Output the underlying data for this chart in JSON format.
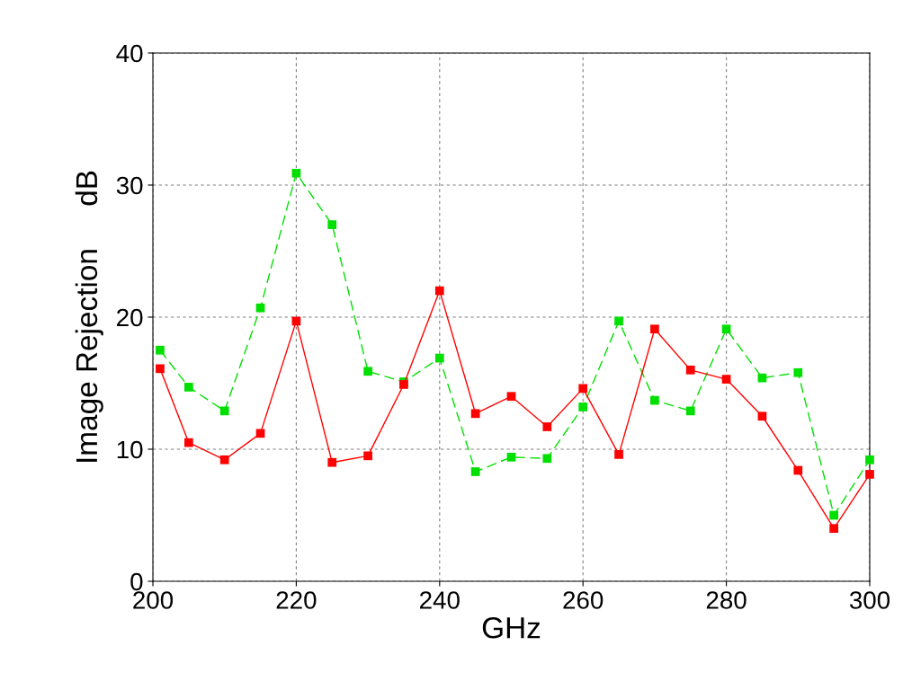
{
  "chart_data": {
    "type": "line",
    "xlabel": "GHz",
    "ylabel": "Image Rejection     dB",
    "x": [
      201,
      205,
      210,
      215,
      220,
      225,
      230,
      235,
      240,
      245,
      250,
      255,
      260,
      265,
      270,
      275,
      280,
      285,
      290,
      295,
      300
    ],
    "series": [
      {
        "color": "#ff0000",
        "line_style": "solid",
        "values": [
          16.1,
          10.5,
          9.2,
          11.2,
          19.7,
          9.0,
          9.5,
          14.9,
          22.0,
          12.7,
          14.0,
          11.7,
          14.6,
          9.6,
          19.1,
          16.0,
          15.3,
          12.5,
          8.4,
          4.0,
          8.1
        ]
      },
      {
        "color": "#00e000",
        "line_style": "dashed",
        "values": [
          17.5,
          14.7,
          12.9,
          20.7,
          30.9,
          27.0,
          15.9,
          15.1,
          16.9,
          8.3,
          9.4,
          9.3,
          13.2,
          19.7,
          13.7,
          12.9,
          19.1,
          15.4,
          15.8,
          5.0,
          9.2
        ]
      }
    ],
    "marker": "square",
    "grid": true,
    "xlim": [
      200,
      300
    ],
    "xticks": [
      200,
      220,
      240,
      260,
      280,
      300
    ],
    "ylim": [
      0,
      40
    ],
    "yticks": [
      0,
      10,
      20,
      30,
      40
    ]
  }
}
